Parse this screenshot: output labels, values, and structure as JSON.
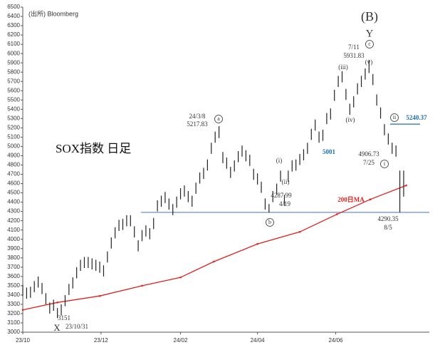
{
  "chart_data": {
    "type": "range-bar",
    "source": "(出所)  Bloomberg",
    "title": "SOX指数 日足",
    "xlim": [
      0,
      317
    ],
    "xticks": [
      {
        "value": 0,
        "label": "23/10"
      },
      {
        "value": 61,
        "label": "23/12"
      },
      {
        "value": 123,
        "label": "24/02"
      },
      {
        "value": 183,
        "label": "24/04"
      },
      {
        "value": 244,
        "label": "24/06"
      }
    ],
    "ylim": [
      3000,
      6500
    ],
    "yticks": [
      3000,
      3100,
      3200,
      3300,
      3400,
      3500,
      3600,
      3700,
      3800,
      3900,
      4000,
      4100,
      4200,
      4300,
      4400,
      4500,
      4600,
      4700,
      4800,
      4900,
      5000,
      5100,
      5200,
      5300,
      5400,
      5500,
      5600,
      5700,
      5800,
      5900,
      6000,
      6100,
      6200,
      6300,
      6400,
      6500
    ],
    "color": "#222222",
    "x": [
      0,
      3,
      6,
      9,
      12,
      15,
      18,
      21,
      24,
      27,
      30,
      33,
      36,
      39,
      42,
      45,
      48,
      51,
      54,
      57,
      60,
      63,
      66,
      69,
      72,
      75,
      78,
      81,
      84,
      87,
      90,
      93,
      96,
      99,
      102,
      105,
      108,
      111,
      114,
      117,
      120,
      123,
      126,
      129,
      132,
      135,
      138,
      141,
      144,
      147,
      150,
      153,
      156,
      159,
      162,
      165,
      168,
      171,
      174,
      177,
      180,
      183,
      186,
      189,
      192,
      195,
      198,
      201,
      204,
      207,
      210,
      213,
      216,
      219,
      222,
      225,
      228,
      231,
      234,
      237,
      240,
      243,
      246,
      249,
      252,
      255,
      258,
      261,
      264,
      267,
      270,
      273,
      276,
      279,
      282,
      285,
      288,
      291,
      294,
      297
    ],
    "high": [
      3510,
      3480,
      3490,
      3550,
      3600,
      3530,
      3420,
      3320,
      3350,
      3260,
      3300,
      3400,
      3520,
      3590,
      3700,
      3780,
      3810,
      3810,
      3795,
      3780,
      3760,
      3720,
      3870,
      4020,
      4130,
      4210,
      4220,
      4260,
      4260,
      4140,
      3990,
      4100,
      4150,
      4120,
      4230,
      4420,
      4470,
      4510,
      4440,
      4380,
      4460,
      4550,
      4580,
      4520,
      4470,
      4610,
      4720,
      4770,
      4860,
      5040,
      5160,
      5218,
      4940,
      4880,
      4780,
      4850,
      4950,
      5010,
      4960,
      4910,
      4760,
      4710,
      4620,
      4440,
      4380,
      4520,
      4600,
      4740,
      4480,
      4740,
      4850,
      4860,
      4920,
      4970,
      5040,
      5190,
      5290,
      5160,
      5180,
      5360,
      5410,
      5610,
      5760,
      5810,
      5620,
      5460,
      5540,
      5680,
      5760,
      5840,
      5932,
      5780,
      5560,
      5420,
      5240,
      5140,
      5040,
      5010,
      4740,
      4740
    ],
    "low": [
      3390,
      3360,
      3370,
      3430,
      3480,
      3410,
      3300,
      3200,
      3230,
      3151,
      3180,
      3280,
      3400,
      3470,
      3580,
      3660,
      3690,
      3690,
      3675,
      3660,
      3640,
      3600,
      3750,
      3900,
      4010,
      4090,
      4100,
      4140,
      4140,
      4020,
      3870,
      3980,
      4030,
      4000,
      4110,
      4300,
      4350,
      4390,
      4320,
      4260,
      4340,
      4430,
      4460,
      4400,
      4350,
      4490,
      4600,
      4650,
      4740,
      4920,
      5040,
      5090,
      4820,
      4760,
      4660,
      4730,
      4830,
      4890,
      4840,
      4790,
      4640,
      4590,
      4500,
      4320,
      4288,
      4400,
      4480,
      4620,
      4360,
      4620,
      4730,
      4740,
      4800,
      4850,
      4920,
      5070,
      5170,
      5040,
      5060,
      5240,
      5290,
      5490,
      5640,
      5690,
      5500,
      5340,
      5420,
      5560,
      5640,
      5720,
      5790,
      5660,
      5440,
      5300,
      5120,
      5020,
      4920,
      4890,
      4290,
      4460
    ],
    "ma": {
      "name": "200日MA",
      "color": "#e02020",
      "x": [
        0,
        27,
        60,
        93,
        123,
        149,
        183,
        216,
        245,
        271,
        299
      ],
      "values": [
        3240,
        3320,
        3390,
        3500,
        3590,
        3760,
        3950,
        4080,
        4270,
        4430,
        4580
      ]
    },
    "reference_lines": [
      {
        "value": 4290,
        "color": "#5b7fd0"
      },
      {
        "value": 5240.37,
        "color": "#1f6fa8"
      }
    ],
    "annotations": [
      "(B)",
      "Y",
      "c",
      "7/11",
      "5931.83",
      "(v)",
      "(iii)",
      "(iv)",
      "24/3/8",
      "5217.83",
      "a",
      "(i)",
      "(ii)",
      "5001",
      "4906.73",
      "7/25",
      "i",
      "ii",
      "5240.37",
      "4287.99",
      "4/19",
      "b",
      "4290.35",
      "8/5",
      "3151",
      "X",
      "23/10/31"
    ]
  }
}
